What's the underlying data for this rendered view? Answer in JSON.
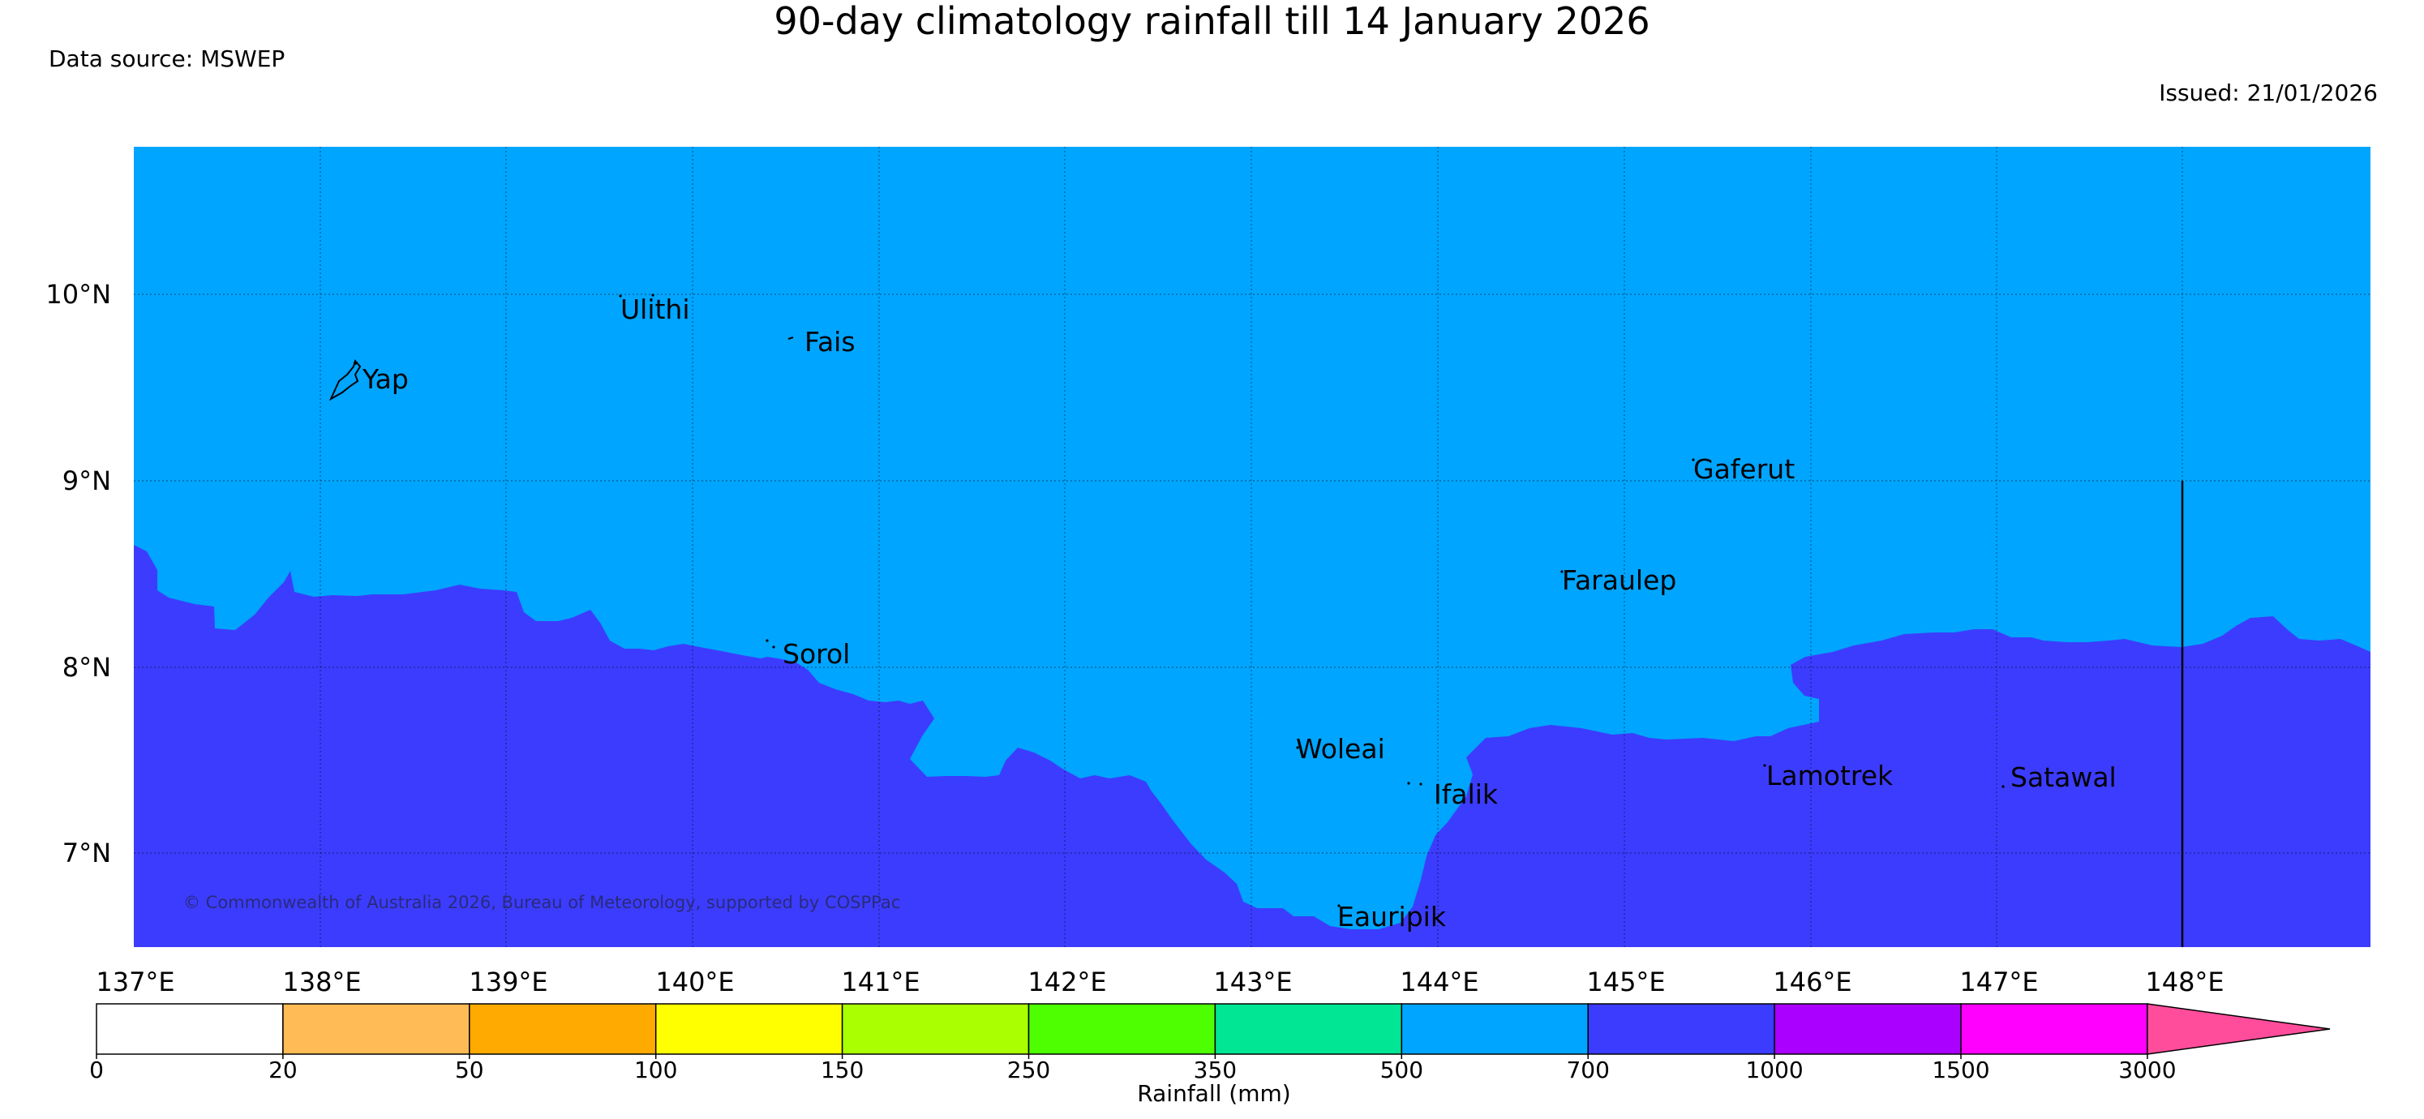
{
  "header": {
    "title": "90-day climatology rainfall till 14 January 2026",
    "source": "Data source: MSWEP",
    "issued": "Issued: 21/01/2026"
  },
  "map": {
    "copyright": "© Commonwealth of Australia 2026, Bureau of Meteorology, supported by COSPPac",
    "lat_ticks": [
      "10°N",
      "9°N",
      "8°N",
      "7°N"
    ],
    "lon_ticks": [
      "137°E",
      "138°E",
      "139°E",
      "140°E",
      "141°E",
      "142°E",
      "143°E",
      "144°E",
      "145°E",
      "146°E",
      "147°E",
      "148°E"
    ],
    "places": [
      "Ulithi",
      "Fais",
      "Yap",
      "Gaferut",
      "Faraulep",
      "Sorol",
      "Woleai",
      "Ifalik",
      "Lamotrek",
      "Satawal",
      "Eauripik"
    ],
    "colors": {
      "band_500_700": "#00a5ff",
      "band_700_1000": "#3c3cff"
    }
  },
  "colorbar": {
    "label": "Rainfall (mm)",
    "ticks": [
      "0",
      "20",
      "50",
      "100",
      "150",
      "250",
      "350",
      "500",
      "700",
      "1000",
      "1500",
      "3000"
    ],
    "colors": [
      "#ffffff",
      "#ffbb55",
      "#ffaa00",
      "#ffff00",
      "#aaff00",
      "#4dff00",
      "#00e695",
      "#00a5ff",
      "#3c3cff",
      "#aa00ff",
      "#ff00ff",
      "#ff4d9c"
    ]
  }
}
